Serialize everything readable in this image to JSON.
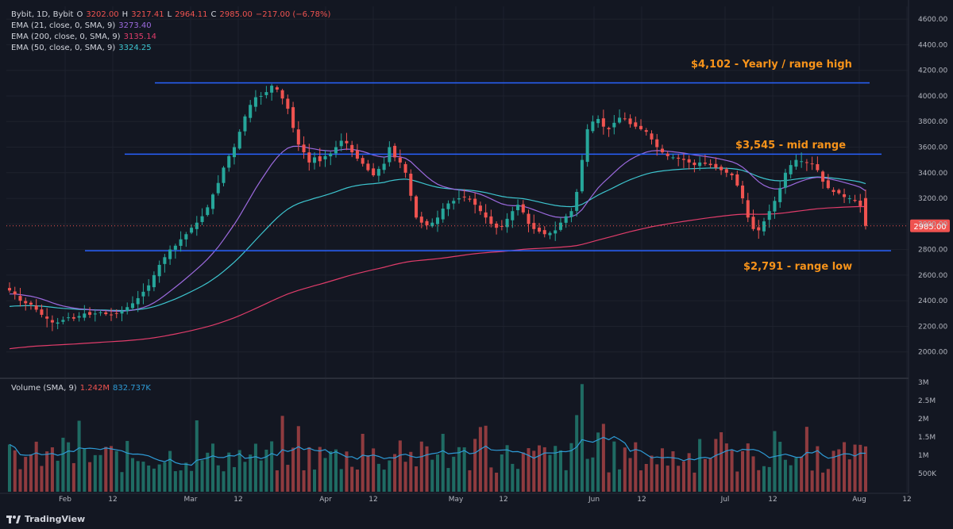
{
  "legend": {
    "symbol": "Bybit, 1D, Bybit",
    "ohlc": {
      "O": "3202.00",
      "H": "3217.41",
      "L": "2964.11",
      "C": "2985.00",
      "change": "−217.00 (−6.78%)"
    },
    "ema21": {
      "label": "EMA (21, close, 0, SMA, 9)",
      "value": "3273.40",
      "color": "#9c6ade"
    },
    "ema200": {
      "label": "EMA (200, close, 0, SMA, 9)",
      "value": "3135.14",
      "color": "#e03c6a"
    },
    "ema50": {
      "label": "EMA (50, close, 0, SMA, 9)",
      "value": "3324.25",
      "color": "#3dc5cf"
    }
  },
  "volume_legend": {
    "label": "Volume (SMA, 9)",
    "value1": "1.242M",
    "value2": "832.737K"
  },
  "annotations": {
    "high": "$4,102 - Yearly / range high",
    "mid": "$3,545 - mid range",
    "low": "$2,791 - range low"
  },
  "last_price_label": "2985.00",
  "brand": "TradingView",
  "colors": {
    "up": "#26a69a",
    "down": "#ef5350",
    "level": "#2962ff",
    "annotation": "#f7931a",
    "bg": "#131722"
  },
  "chart_data": [
    {
      "type": "candlestick",
      "title": "Bybit, 1D",
      "ylim": [
        1800,
        4700
      ],
      "y_ticks": [
        "2000.00",
        "2200.00",
        "2400.00",
        "2600.00",
        "2800.00",
        "3000.00",
        "3200.00",
        "3400.00",
        "3600.00",
        "3800.00",
        "4000.00",
        "4200.00",
        "4400.00",
        "4600.00"
      ],
      "x_ticks": [
        "Feb",
        "12",
        "Mar",
        "12",
        "Apr",
        "12",
        "May",
        "12",
        "Jun",
        "12",
        "Jul",
        "12",
        "Aug",
        "12"
      ],
      "levels": [
        {
          "name": "range high",
          "value": 4102
        },
        {
          "name": "mid range",
          "value": 3545
        },
        {
          "name": "range low",
          "value": 2791
        }
      ],
      "series": [
        {
          "name": "EMA (21, close, 0, SMA, 9)",
          "last": 3273.4
        },
        {
          "name": "EMA (50, close, 0, SMA, 9)",
          "last": 3324.25
        },
        {
          "name": "EMA (200, close, 0, SMA, 9)",
          "last": 3135.14
        }
      ],
      "closes": [
        2480,
        2450,
        2400,
        2380,
        2370,
        2330,
        2290,
        2260,
        2230,
        2230,
        2250,
        2270,
        2260,
        2280,
        2300,
        2290,
        2300,
        2310,
        2295,
        2290,
        2300,
        2320,
        2350,
        2380,
        2420,
        2470,
        2520,
        2600,
        2680,
        2740,
        2800,
        2830,
        2880,
        2920,
        2970,
        3010,
        3060,
        3130,
        3230,
        3320,
        3440,
        3530,
        3600,
        3720,
        3840,
        3930,
        3990,
        4000,
        4030,
        4080,
        4050,
        3980,
        3900,
        3750,
        3620,
        3560,
        3480,
        3520,
        3490,
        3530,
        3550,
        3600,
        3650,
        3630,
        3560,
        3510,
        3470,
        3420,
        3380,
        3430,
        3470,
        3600,
        3520,
        3480,
        3400,
        3220,
        3050,
        3010,
        2990,
        3010,
        3050,
        3120,
        3160,
        3180,
        3200,
        3210,
        3190,
        3150,
        3100,
        3050,
        3000,
        2970,
        2980,
        3040,
        3100,
        3150,
        3090,
        3000,
        2960,
        2940,
        2920,
        2930,
        2950,
        3010,
        3060,
        3100,
        3250,
        3500,
        3740,
        3800,
        3820,
        3760,
        3740,
        3790,
        3830,
        3820,
        3780,
        3760,
        3740,
        3720,
        3660,
        3600,
        3560,
        3530,
        3520,
        3510,
        3500,
        3480,
        3460,
        3480,
        3470,
        3460,
        3440,
        3420,
        3400,
        3380,
        3300,
        3200,
        3050,
        2960,
        2950,
        3020,
        3100,
        3180,
        3280,
        3400,
        3460,
        3500,
        3490,
        3480,
        3470,
        3420,
        3330,
        3280,
        3250,
        3240,
        3210,
        3200,
        3180,
        3140,
        2985
      ],
      "volume_axis": [
        "3M",
        "2.5M",
        "2M",
        "1.5M",
        "1M",
        "500K"
      ]
    }
  ]
}
